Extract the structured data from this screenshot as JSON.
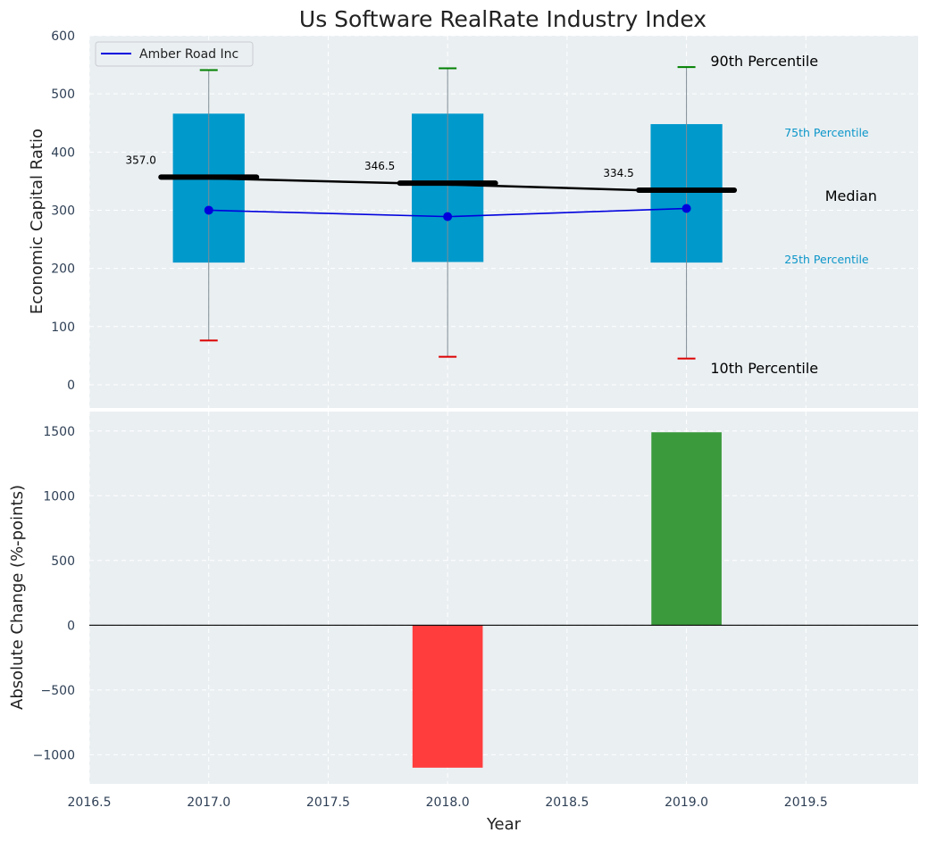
{
  "chart_data": [
    {
      "type": "box",
      "title": "Us Software RealRate Industry Index",
      "xlabel": "",
      "ylabel": "Economic Capital Ratio",
      "ylim": [
        -40,
        600
      ],
      "yticks": [
        0,
        100,
        200,
        300,
        400,
        500,
        600
      ],
      "categories": [
        2017.0,
        2018.0,
        2019.0
      ],
      "percentiles": {
        "p10": [
          76,
          48,
          45
        ],
        "p25": [
          210,
          211,
          210
        ],
        "median": [
          357.0,
          346.5,
          334.5
        ],
        "p75": [
          466,
          466,
          448
        ],
        "p90": [
          541,
          544,
          546
        ]
      },
      "median_labels": [
        "357.0",
        "346.5",
        "334.5"
      ],
      "series": [
        {
          "name": "Amber Road Inc",
          "values": [
            300,
            289,
            303
          ],
          "color": "#0000dd"
        }
      ],
      "annotations": {
        "p90": "90th Percentile",
        "p75": "75th Percentile",
        "median": "Median",
        "p25": "25th Percentile",
        "p10": "10th Percentile"
      },
      "legend": "top-left",
      "grid": true,
      "colors": {
        "box": "#0099cc",
        "p90_cap": "#008000",
        "p10_cap": "#dd0000",
        "median_line": "#000000",
        "background": "#eaeff2"
      }
    },
    {
      "type": "bar",
      "xlabel": "Year",
      "ylabel": "Absolute Change (%-points)",
      "x": [
        2018.0,
        2019.0
      ],
      "values": [
        -1100,
        1490
      ],
      "ylim": [
        -1225,
        1650
      ],
      "yticks": [
        -1000,
        -500,
        0,
        500,
        1000,
        1500
      ],
      "ytick_labels": [
        "−1000",
        "−500",
        "0",
        "500",
        "1000",
        "1500"
      ],
      "xlim": [
        2016.5,
        2019.97
      ],
      "xticks": [
        2016.5,
        2017.0,
        2017.5,
        2018.0,
        2018.5,
        2019.0,
        2019.5
      ],
      "xtick_labels": [
        "2016.5",
        "2017.0",
        "2017.5",
        "2018.0",
        "2018.5",
        "2019.0",
        "2019.5"
      ],
      "grid": true,
      "colors": {
        "positive": "#3a9a3c",
        "negative": "#ff3d3d",
        "zero_line": "#000000"
      }
    }
  ]
}
